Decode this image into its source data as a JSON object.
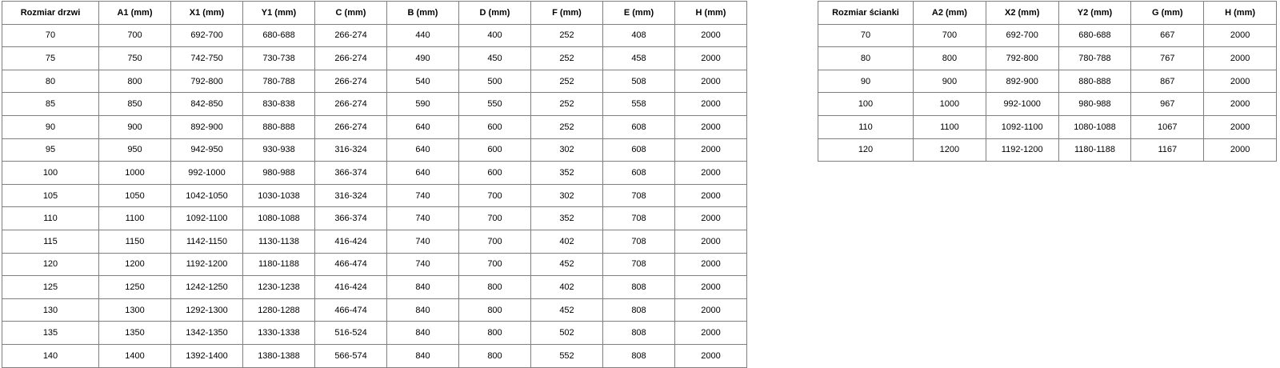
{
  "page": {
    "background_color": "#ffffff",
    "text_color": "#000000",
    "grid_color": "#7f7f7f"
  },
  "chart_data": [
    {
      "type": "table",
      "title": "Rozmiar drzwi",
      "columns": [
        "Rozmiar drzwi",
        "A1 (mm)",
        "X1 (mm)",
        "Y1 (mm)",
        "C (mm)",
        "B (mm)",
        "D (mm)",
        "F (mm)",
        "E (mm)",
        "H (mm)"
      ],
      "rows": [
        [
          "70",
          "700",
          "692-700",
          "680-688",
          "266-274",
          "440",
          "400",
          "252",
          "408",
          "2000"
        ],
        [
          "75",
          "750",
          "742-750",
          "730-738",
          "266-274",
          "490",
          "450",
          "252",
          "458",
          "2000"
        ],
        [
          "80",
          "800",
          "792-800",
          "780-788",
          "266-274",
          "540",
          "500",
          "252",
          "508",
          "2000"
        ],
        [
          "85",
          "850",
          "842-850",
          "830-838",
          "266-274",
          "590",
          "550",
          "252",
          "558",
          "2000"
        ],
        [
          "90",
          "900",
          "892-900",
          "880-888",
          "266-274",
          "640",
          "600",
          "252",
          "608",
          "2000"
        ],
        [
          "95",
          "950",
          "942-950",
          "930-938",
          "316-324",
          "640",
          "600",
          "302",
          "608",
          "2000"
        ],
        [
          "100",
          "1000",
          "992-1000",
          "980-988",
          "366-374",
          "640",
          "600",
          "352",
          "608",
          "2000"
        ],
        [
          "105",
          "1050",
          "1042-1050",
          "1030-1038",
          "316-324",
          "740",
          "700",
          "302",
          "708",
          "2000"
        ],
        [
          "110",
          "1100",
          "1092-1100",
          "1080-1088",
          "366-374",
          "740",
          "700",
          "352",
          "708",
          "2000"
        ],
        [
          "115",
          "1150",
          "1142-1150",
          "1130-1138",
          "416-424",
          "740",
          "700",
          "402",
          "708",
          "2000"
        ],
        [
          "120",
          "1200",
          "1192-1200",
          "1180-1188",
          "466-474",
          "740",
          "700",
          "452",
          "708",
          "2000"
        ],
        [
          "125",
          "1250",
          "1242-1250",
          "1230-1238",
          "416-424",
          "840",
          "800",
          "402",
          "808",
          "2000"
        ],
        [
          "130",
          "1300",
          "1292-1300",
          "1280-1288",
          "466-474",
          "840",
          "800",
          "452",
          "808",
          "2000"
        ],
        [
          "135",
          "1350",
          "1342-1350",
          "1330-1338",
          "516-524",
          "840",
          "800",
          "502",
          "808",
          "2000"
        ],
        [
          "140",
          "1400",
          "1392-1400",
          "1380-1388",
          "566-574",
          "840",
          "800",
          "552",
          "808",
          "2000"
        ]
      ]
    },
    {
      "type": "table",
      "title": "Rozmiar ścianki",
      "columns": [
        "Rozmiar ścianki",
        "A2 (mm)",
        "X2 (mm)",
        "Y2 (mm)",
        "G (mm)",
        "H (mm)"
      ],
      "rows": [
        [
          "70",
          "700",
          "692-700",
          "680-688",
          "667",
          "2000"
        ],
        [
          "80",
          "800",
          "792-800",
          "780-788",
          "767",
          "2000"
        ],
        [
          "90",
          "900",
          "892-900",
          "880-888",
          "867",
          "2000"
        ],
        [
          "100",
          "1000",
          "992-1000",
          "980-988",
          "967",
          "2000"
        ],
        [
          "110",
          "1100",
          "1092-1100",
          "1080-1088",
          "1067",
          "2000"
        ],
        [
          "120",
          "1200",
          "1192-1200",
          "1180-1188",
          "1167",
          "2000"
        ]
      ]
    }
  ]
}
